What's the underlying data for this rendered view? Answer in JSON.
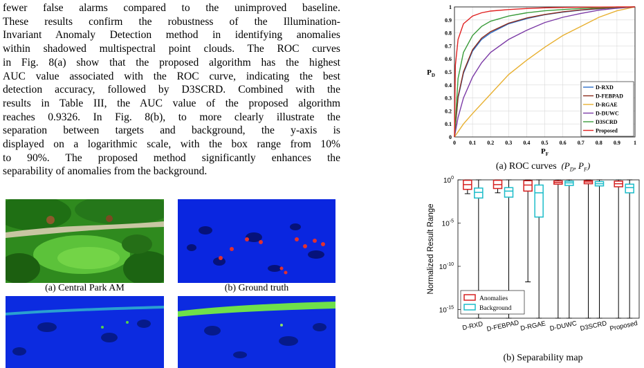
{
  "body_lines": [
    "fewer false alarms compared to the unimproved baseline.",
    "These results confirm the robustness of the Illumination-",
    "Invariant Anomaly Detection method in identifying anomalies",
    "within shadowed multispectral point clouds. The ROC curves",
    "in Fig. 8(a) show that the proposed algorithm has the highest",
    "AUC value associated with the ROC curve, indicating the best",
    "detection accuracy, followed by D3SCRD. Combined with the",
    "results in Table III, the AUC value of the proposed algorithm",
    "reaches 0.9326. In Fig. 8(b), to more clearly illustrate the",
    "separation between targets and background, the y-axis is",
    "displayed on a logarithmic scale, with the box range from 10%",
    "to 90%. The proposed method significantly enhances the",
    "separability of anomalies from the background."
  ],
  "fig7": {
    "caption_a": "(a) Central Park AM",
    "caption_b": "(b) Ground truth"
  },
  "fig8": {
    "caption_a": "(a) ROC curves",
    "caption_a_math": "(P_D, P_F)",
    "caption_b": "(b) Separability map"
  },
  "chart_data": [
    {
      "type": "line",
      "xlabel": "P_F",
      "ylabel": "P_D",
      "xlim": [
        0,
        1
      ],
      "ylim": [
        0,
        1
      ],
      "xticks": [
        "0",
        "0.1",
        "0.2",
        "0.3",
        "0.4",
        "0.5",
        "0.6",
        "0.7",
        "0.8",
        "0.9",
        "1"
      ],
      "yticks": [
        "0",
        "0.1",
        "0.2",
        "0.3",
        "0.4",
        "0.5",
        "0.6",
        "0.7",
        "0.8",
        "0.9",
        "1"
      ],
      "grid": true,
      "legend_position": "bottom-right",
      "series": [
        {
          "name": "D-RXD",
          "color": "#2b6fc9",
          "x": [
            0,
            0.02,
            0.05,
            0.1,
            0.15,
            0.2,
            0.3,
            0.4,
            0.5,
            0.6,
            0.7,
            0.8,
            0.9,
            1
          ],
          "y": [
            0,
            0.3,
            0.49,
            0.66,
            0.75,
            0.8,
            0.87,
            0.91,
            0.94,
            0.96,
            0.975,
            0.985,
            0.995,
            1
          ]
        },
        {
          "name": "D-FEBPAD",
          "color": "#8c2b1a",
          "x": [
            0,
            0.02,
            0.05,
            0.1,
            0.15,
            0.2,
            0.3,
            0.4,
            0.5,
            0.6,
            0.7,
            0.8,
            0.9,
            1
          ],
          "y": [
            0,
            0.31,
            0.5,
            0.67,
            0.76,
            0.81,
            0.875,
            0.915,
            0.942,
            0.962,
            0.977,
            0.987,
            0.995,
            1
          ]
        },
        {
          "name": "D-RGAE",
          "color": "#e8b030",
          "x": [
            0,
            0.05,
            0.1,
            0.2,
            0.3,
            0.4,
            0.5,
            0.6,
            0.7,
            0.8,
            0.9,
            1
          ],
          "y": [
            0,
            0.1,
            0.18,
            0.33,
            0.48,
            0.59,
            0.69,
            0.78,
            0.85,
            0.92,
            0.97,
            1
          ]
        },
        {
          "name": "D-DUWC",
          "color": "#7b3aa6",
          "x": [
            0,
            0.02,
            0.05,
            0.1,
            0.15,
            0.2,
            0.3,
            0.4,
            0.5,
            0.6,
            0.7,
            0.8,
            0.9,
            1
          ],
          "y": [
            0,
            0.15,
            0.3,
            0.46,
            0.57,
            0.65,
            0.75,
            0.82,
            0.88,
            0.92,
            0.95,
            0.975,
            0.99,
            1
          ]
        },
        {
          "name": "D3SCRD",
          "color": "#3a9b3a",
          "x": [
            0,
            0.02,
            0.05,
            0.1,
            0.15,
            0.2,
            0.3,
            0.4,
            0.5,
            0.6,
            0.7,
            0.8,
            0.9,
            1
          ],
          "y": [
            0,
            0.45,
            0.65,
            0.78,
            0.85,
            0.89,
            0.93,
            0.955,
            0.97,
            0.98,
            0.988,
            0.993,
            0.997,
            1
          ]
        },
        {
          "name": "Proposed",
          "color": "#e02020",
          "x": [
            0,
            0.005,
            0.02,
            0.05,
            0.1,
            0.15,
            0.2,
            0.3,
            0.4,
            0.5,
            0.6,
            0.7,
            0.8,
            0.9,
            1
          ],
          "y": [
            0,
            0.55,
            0.75,
            0.87,
            0.93,
            0.955,
            0.968,
            0.98,
            0.988,
            0.993,
            0.996,
            0.998,
            0.999,
            1,
            1
          ]
        }
      ]
    },
    {
      "type": "box",
      "ylabel": "Normalized Result Range",
      "yscale": "log",
      "ylim_exp": [
        -16,
        0
      ],
      "yticks": [
        "10^0",
        "10^-5",
        "10^-10",
        "10^-15"
      ],
      "legend_position": "bottom-left",
      "categories": [
        "D-RXD",
        "D-FEBPAD",
        "D-RGAE",
        "D-DUWC",
        "D3SCRD",
        "Proposed"
      ],
      "series": [
        {
          "name": "Anomalies",
          "color": "#d62020",
          "whisker_low_exp": [
            -1.6,
            -1.5,
            -11.8,
            -17,
            -17,
            -17
          ],
          "q1_exp": [
            -1.1,
            -1.0,
            -1.3,
            -0.5,
            -0.45,
            -0.8
          ],
          "median_exp": [
            -0.55,
            -0.55,
            -0.6,
            -0.3,
            -0.25,
            -0.45
          ],
          "q3_exp": [
            -0.05,
            -0.05,
            -0.1,
            -0.12,
            -0.1,
            -0.15
          ],
          "whisker_high_exp": [
            0,
            0,
            0,
            0,
            0,
            0
          ]
        },
        {
          "name": "Background",
          "color": "#1bbcc9",
          "whisker_low_exp": [
            -17,
            -17,
            -17,
            -17,
            -17,
            -17
          ],
          "q1_exp": [
            -2.1,
            -2.0,
            -4.3,
            -0.65,
            -0.7,
            -1.5
          ],
          "median_exp": [
            -1.45,
            -1.3,
            -1.5,
            -0.35,
            -0.45,
            -0.9
          ],
          "q3_exp": [
            -0.95,
            -0.9,
            -0.6,
            -0.15,
            -0.2,
            -0.5
          ],
          "whisker_high_exp": [
            0,
            0,
            0,
            0,
            0,
            0
          ]
        }
      ]
    }
  ]
}
